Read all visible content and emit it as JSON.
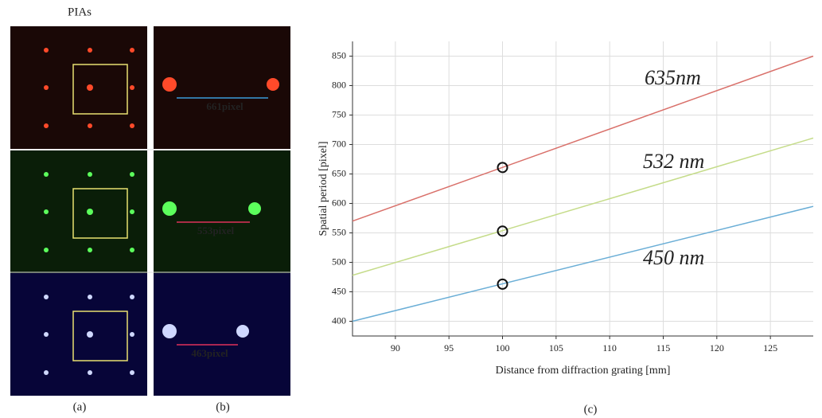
{
  "figure": {
    "panel_a_title": "PIAs",
    "labels": [
      "(a)",
      "(b)",
      "(c)"
    ],
    "measurements": [
      "661pixel",
      "553pixel",
      "463pixel"
    ]
  },
  "chart_data": {
    "type": "line",
    "x_label": "Distance from diffraction grating [mm]",
    "y_label": "Spatial period [pixel]",
    "xlim": [
      86,
      129
    ],
    "xticks": [
      90,
      95,
      100,
      105,
      110,
      115,
      120,
      125
    ],
    "ylim": [
      375,
      875
    ],
    "yticks": [
      400,
      450,
      500,
      550,
      600,
      650,
      700,
      750,
      800,
      850
    ],
    "grid": true,
    "series": [
      {
        "name": "635nm",
        "color": "#d9706a",
        "x": [
          86,
          129
        ],
        "values": [
          570,
          850
        ]
      },
      {
        "name": "532 nm",
        "color": "#c5dc8a",
        "x": [
          86,
          129
        ],
        "values": [
          478,
          711
        ]
      },
      {
        "name": "450 nm",
        "color": "#6aaed6",
        "x": [
          86,
          129
        ],
        "values": [
          400,
          595
        ]
      }
    ],
    "points": {
      "x": [
        100,
        100,
        100
      ],
      "values": [
        661,
        553,
        463
      ]
    }
  }
}
